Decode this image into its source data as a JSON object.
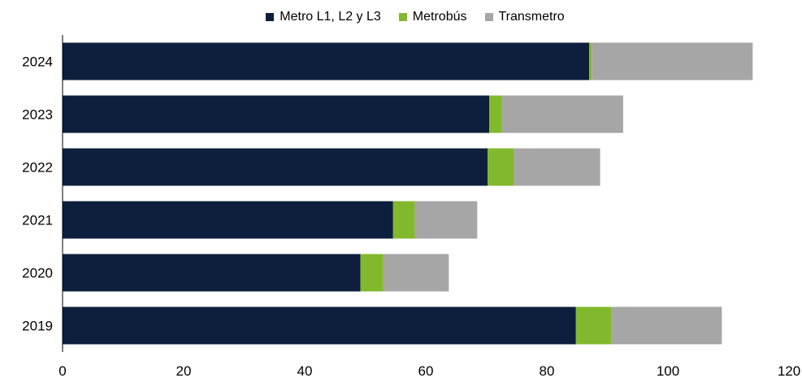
{
  "chart_data": {
    "type": "bar",
    "orientation": "horizontal",
    "stacked": true,
    "categories": [
      "2024",
      "2023",
      "2022",
      "2021",
      "2020",
      "2019"
    ],
    "series": [
      {
        "name": "Metro L1, L2 y L3",
        "color": "#0e1f3d",
        "values": [
          87.0,
          70.5,
          70.2,
          54.6,
          49.2,
          84.8
        ]
      },
      {
        "name": "Metrobús",
        "color": "#82b92c",
        "values": [
          0.4,
          2.1,
          4.3,
          3.6,
          3.8,
          5.9
        ]
      },
      {
        "name": "Transmetro",
        "color": "#a6a6a6",
        "values": [
          26.6,
          20.0,
          14.3,
          10.3,
          10.8,
          18.2
        ]
      }
    ],
    "xlim": [
      0,
      120
    ],
    "xticks": [
      "0",
      "20",
      "40",
      "60",
      "80",
      "100",
      "120"
    ],
    "legend_position": "top",
    "grid": false,
    "title": "",
    "xlabel": "",
    "ylabel": ""
  }
}
